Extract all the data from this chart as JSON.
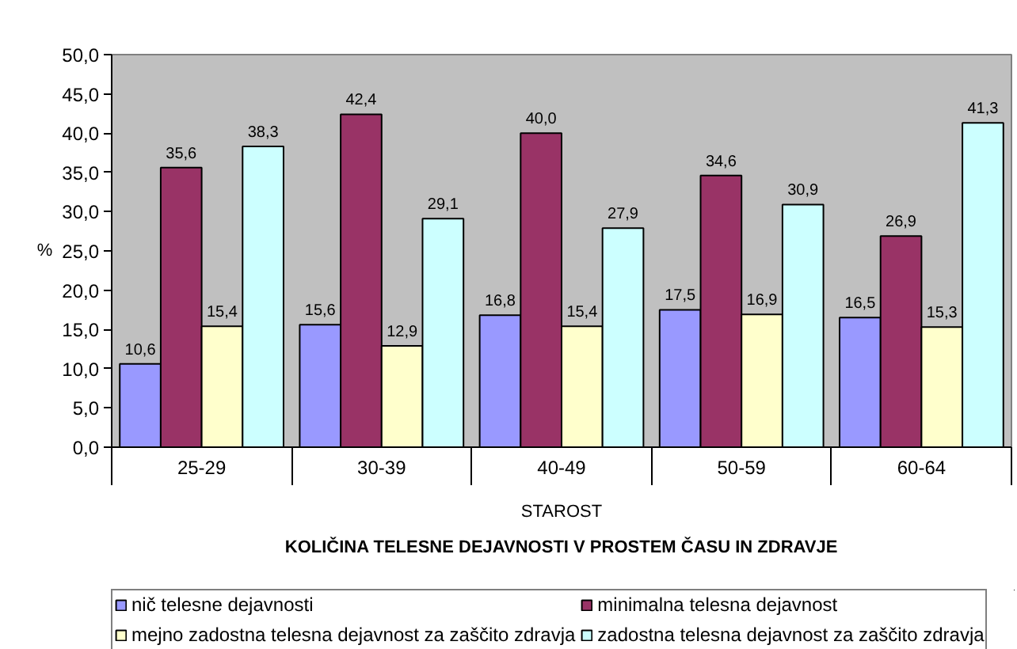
{
  "chart_data": {
    "type": "bar",
    "title": "KOLIČINA TELESNE DEJAVNOSTI V PROSTEM ČASU IN ZDRAVJE",
    "xlabel": "STAROST",
    "ylabel": "%",
    "categories": [
      "25-29",
      "30-39",
      "40-49",
      "50-59",
      "60-64"
    ],
    "series": [
      {
        "name": "nič telesne dejavnosti",
        "color": "#9999ff",
        "values": [
          10.6,
          15.6,
          16.8,
          17.5,
          16.5
        ],
        "value_labels": [
          "10,6",
          "15,6",
          "16,8",
          "17,5",
          "16,5"
        ]
      },
      {
        "name": "minimalna telesna dejavnost",
        "color": "#993366",
        "values": [
          35.6,
          42.4,
          40.0,
          34.6,
          26.9
        ],
        "value_labels": [
          "35,6",
          "42,4",
          "40,0",
          "34,6",
          "26,9"
        ]
      },
      {
        "name": "mejno zadostna telesna dejavnost za zaščito zdravja",
        "color": "#ffffcc",
        "values": [
          15.4,
          12.9,
          15.4,
          16.9,
          15.3
        ],
        "value_labels": [
          "15,4",
          "12,9",
          "15,4",
          "16,9",
          "15,3"
        ]
      },
      {
        "name": "zadostna telesna dejavnost za zaščito zdravja",
        "color": "#ccffff",
        "values": [
          38.3,
          29.1,
          27.9,
          30.9,
          41.3
        ],
        "value_labels": [
          "38,3",
          "29,1",
          "27,9",
          "30,9",
          "41,3"
        ]
      }
    ],
    "ylim": [
      0,
      50
    ],
    "yticks": [
      {
        "value": 0,
        "label": "0,0"
      },
      {
        "value": 5,
        "label": "5,0"
      },
      {
        "value": 10,
        "label": "10,0"
      },
      {
        "value": 15,
        "label": "15,0"
      },
      {
        "value": 20,
        "label": "20,0"
      },
      {
        "value": 25,
        "label": "25,0"
      },
      {
        "value": 30,
        "label": "30,0"
      },
      {
        "value": 35,
        "label": "35,0"
      },
      {
        "value": 40,
        "label": "40,0"
      },
      {
        "value": 45,
        "label": "45,0"
      },
      {
        "value": 50,
        "label": "50,0"
      }
    ],
    "grid": false,
    "legend": "bottom"
  }
}
